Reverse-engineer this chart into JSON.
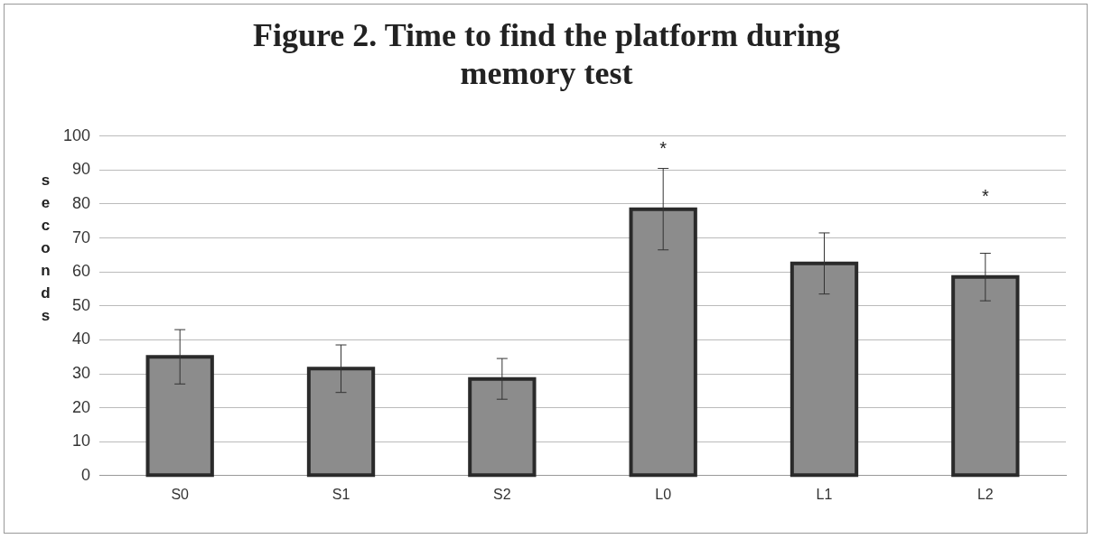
{
  "chart_data": {
    "type": "bar",
    "title": "Figure 2. Time to find the platform during memory test",
    "ylabel": "seconds",
    "categories": [
      "S0",
      "S1",
      "S2",
      "L0",
      "L1",
      "L2"
    ],
    "values": [
      35,
      31.5,
      28.5,
      78.5,
      62.5,
      58.5
    ],
    "errors": [
      8,
      7,
      6,
      12,
      9,
      7
    ],
    "color": "#8c8c8c",
    "ylim": [
      0,
      100
    ],
    "yticks": [
      0,
      10,
      20,
      30,
      40,
      50,
      60,
      70,
      80,
      90,
      100
    ],
    "grid": "y",
    "legend": false,
    "annotations": [
      "*",
      "*"
    ]
  }
}
